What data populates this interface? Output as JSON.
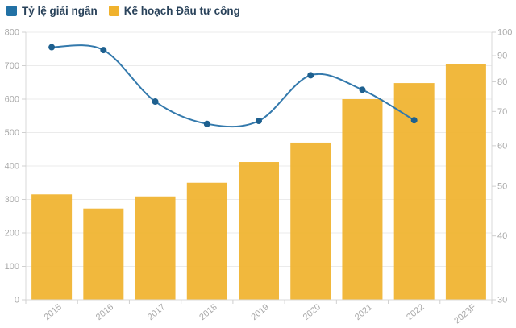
{
  "legend": {
    "items": [
      {
        "label": "Tỷ lệ giải ngân",
        "color": "#2271a5"
      },
      {
        "label": "Kế hoạch Đầu tư công",
        "color": "#f0b22d"
      }
    ]
  },
  "chart_data": {
    "type": "combo",
    "categories": [
      "2015",
      "2016",
      "2017",
      "2018",
      "2019",
      "2020",
      "2021",
      "2022",
      "2023F"
    ],
    "series": [
      {
        "name": "Kế hoạch Đầu tư công",
        "type": "bar",
        "axis": "left",
        "color": "#f0b22d",
        "values": [
          315,
          273,
          309,
          350,
          412,
          470,
          600,
          648,
          706
        ]
      },
      {
        "name": "Tỷ lệ giải ngân",
        "type": "line",
        "axis": "right",
        "color": "#3379ac",
        "dot_color": "#1e608f",
        "values": [
          93.5,
          92.3,
          73.2,
          66.2,
          67.1,
          82.4,
          77.2,
          67.3,
          null
        ]
      }
    ],
    "left_axis": {
      "scale": "linear",
      "min": 0,
      "max": 800,
      "ticks": [
        0,
        100,
        200,
        300,
        400,
        500,
        600,
        700,
        800
      ]
    },
    "right_axis": {
      "scale": "log",
      "min": 30,
      "max": 100,
      "ticks": [
        30,
        40,
        50,
        60,
        70,
        80,
        90,
        100
      ]
    },
    "grid": true,
    "legend_position": "top-left",
    "styles": {
      "grid_color": "#ebebeb",
      "axis_line_color": "#d8d8d8",
      "tick_color": "#d0d0d0",
      "axis_label_color": "#a8a8a8",
      "background": "#ffffff"
    }
  }
}
